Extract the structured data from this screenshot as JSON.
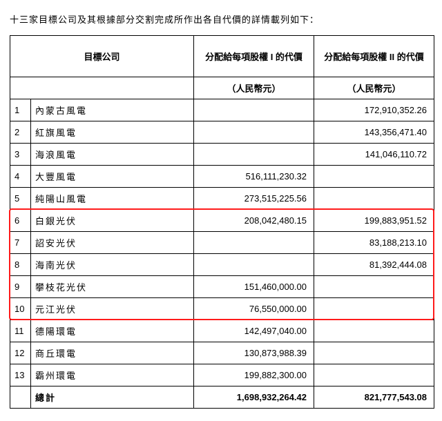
{
  "intro": "十三家目標公司及其根據部分交割完成所作出各自代價的詳情載列如下：",
  "headers": {
    "company": "目標公司",
    "colA": "分配給每項股權 I 的代價",
    "colB": "分配給每項股權 II 的代價",
    "unit": "（人民幣元）"
  },
  "rows": [
    {
      "idx": "1",
      "name": "內蒙古風電",
      "a": "",
      "b": "172,910,352.26"
    },
    {
      "idx": "2",
      "name": "紅旗風電",
      "a": "",
      "b": "143,356,471.40"
    },
    {
      "idx": "3",
      "name": "海浪風電",
      "a": "",
      "b": "141,046,110.72"
    },
    {
      "idx": "4",
      "name": "大豐風電",
      "a": "516,111,230.32",
      "b": ""
    },
    {
      "idx": "5",
      "name": "純陽山風電",
      "a": "273,515,225.56",
      "b": ""
    },
    {
      "idx": "6",
      "name": "白銀光伏",
      "a": "208,042,480.15",
      "b": "199,883,951.52"
    },
    {
      "idx": "7",
      "name": "詔安光伏",
      "a": "",
      "b": "83,188,213.10"
    },
    {
      "idx": "8",
      "name": "海南光伏",
      "a": "",
      "b": "81,392,444.08"
    },
    {
      "idx": "9",
      "name": "攀枝花光伏",
      "a": "151,460,000.00",
      "b": ""
    },
    {
      "idx": "10",
      "name": "元江光伏",
      "a": "76,550,000.00",
      "b": ""
    },
    {
      "idx": "11",
      "name": "德陽環電",
      "a": "142,497,040.00",
      "b": ""
    },
    {
      "idx": "12",
      "name": "商丘環電",
      "a": "130,873,988.39",
      "b": ""
    },
    {
      "idx": "13",
      "name": "霸州環電",
      "a": "199,882,300.00",
      "b": ""
    }
  ],
  "total": {
    "label": "總計",
    "a": "1,698,932,264.42",
    "b": "821,777,543.08"
  },
  "highlight": {
    "fromIdx": "6",
    "toIdx": "10",
    "color": "#ff1a1a"
  },
  "style": {
    "background": "#ffffff",
    "textColor": "#000000",
    "borderColor": "#000000",
    "fontSizePx": 13,
    "colWidths": {
      "idx": 30,
      "name": 236,
      "valA": 174,
      "valB": 174
    },
    "rowHeightPx": 27,
    "headerHeights": {
      "bigPx": 60,
      "unitPx": 30
    }
  }
}
